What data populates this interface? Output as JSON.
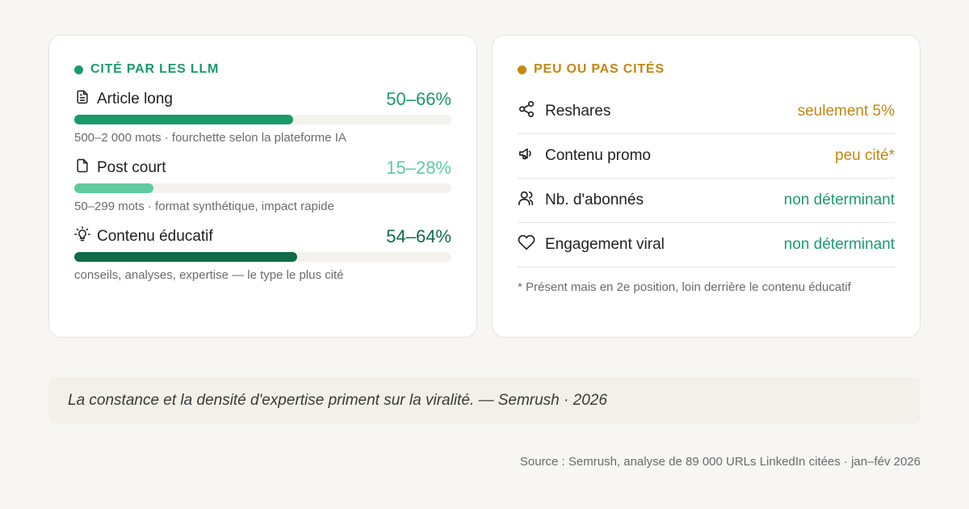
{
  "colors": {
    "green_dark": "#1a9a6a",
    "green_light": "#5fcb9f",
    "green_deep": "#0f6b4a",
    "amber": "#c58712",
    "teal_text": "#1e9a6e"
  },
  "cited": {
    "title": "CITÉ PAR LES LLM",
    "items": [
      {
        "icon": "document-lines-icon",
        "name": "Article long",
        "value": "50–66%",
        "fill": 0.58,
        "desc": "500–2 000 mots · fourchette selon la plateforme IA"
      },
      {
        "icon": "document-icon",
        "name": "Post court",
        "value": "15–28%",
        "fill": 0.21,
        "desc": "50–299 mots · format synthétique, impact rapide"
      },
      {
        "icon": "lightbulb-icon",
        "name": "Contenu éducatif",
        "value": "54–64%",
        "fill": 0.59,
        "desc": "conseils, analyses, expertise — le type le plus cité"
      }
    ]
  },
  "not_cited": {
    "title": "PEU OU PAS CITÉS",
    "rows": [
      {
        "icon": "share-icon",
        "name": "Reshares",
        "value": "seulement 5%"
      },
      {
        "icon": "megaphone-icon",
        "name": "Contenu promo",
        "value": "peu cité*"
      },
      {
        "icon": "users-icon",
        "name": "Nb. d'abonnés",
        "value": "non déterminant"
      },
      {
        "icon": "heart-icon",
        "name": "Engagement viral",
        "value": "non déterminant"
      }
    ],
    "footnote": "* Présent mais en 2e position, loin derrière le contenu éducatif"
  },
  "quote": "La constance et la densité d'expertise priment sur la viralité. — Semrush · 2026",
  "source": "Source : Semrush, analyse de 89 000 URLs LinkedIn citées · jan–fév 2026"
}
